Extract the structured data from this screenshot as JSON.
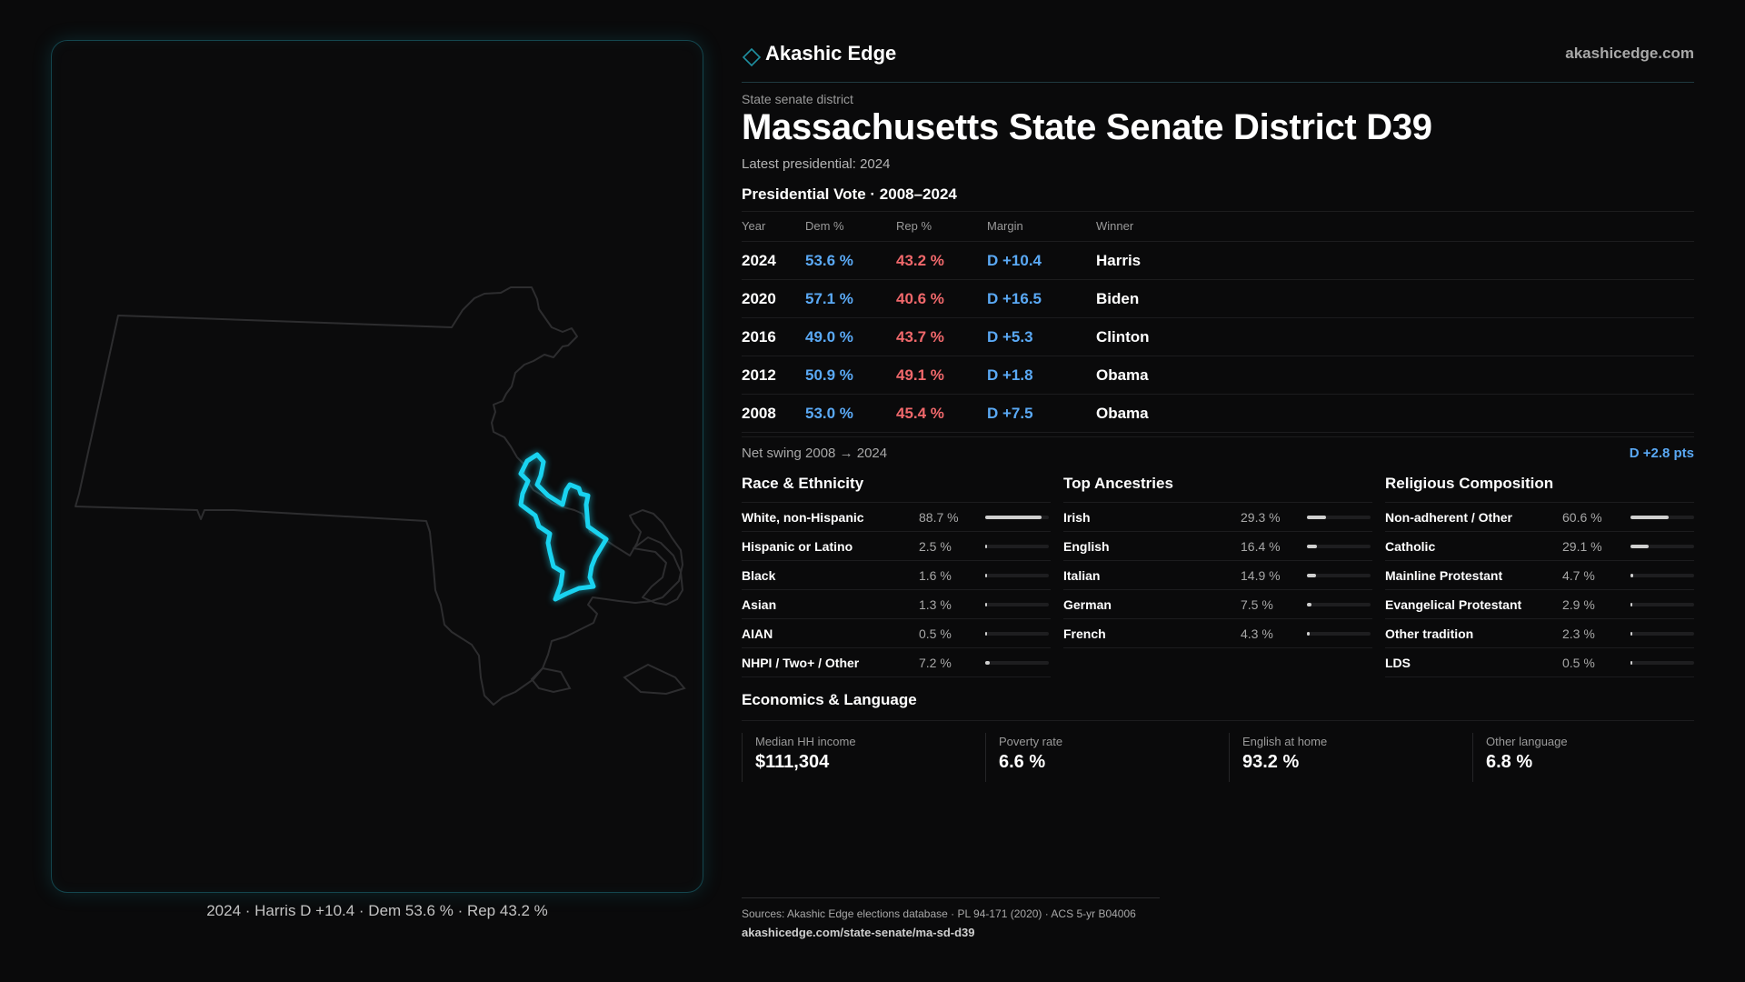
{
  "brand": {
    "name": "Akashic Edge",
    "url": "akashicedge.com"
  },
  "header": {
    "kicker": "State senate district",
    "title": "Massachusetts State Senate District D39",
    "latest": "Latest presidential: 2024"
  },
  "presidential": {
    "title": "Presidential Vote · 2008–2024",
    "columns": [
      "Year",
      "Dem %",
      "Rep %",
      "Margin",
      "Winner"
    ],
    "rows": [
      {
        "year": "2024",
        "dem": "53.6 %",
        "rep": "43.2 %",
        "margin": "D +10.4",
        "winner": "Harris"
      },
      {
        "year": "2020",
        "dem": "57.1 %",
        "rep": "40.6 %",
        "margin": "D +16.5",
        "winner": "Biden"
      },
      {
        "year": "2016",
        "dem": "49.0 %",
        "rep": "43.7 %",
        "margin": "D +5.3",
        "winner": "Clinton"
      },
      {
        "year": "2012",
        "dem": "50.9 %",
        "rep": "49.1 %",
        "margin": "D +1.8",
        "winner": "Obama"
      },
      {
        "year": "2008",
        "dem": "53.0 %",
        "rep": "45.4 %",
        "margin": "D +7.5",
        "winner": "Obama"
      }
    ],
    "swing_label": "Net swing 2008 → 2024",
    "swing_value": "D +2.8 pts"
  },
  "race": {
    "title": "Race & Ethnicity",
    "rows": [
      {
        "label": "White, non-Hispanic",
        "value": "88.7 %",
        "fraction": 0.887
      },
      {
        "label": "Hispanic or Latino",
        "value": "2.5 %",
        "fraction": 0.025
      },
      {
        "label": "Black",
        "value": "1.6 %",
        "fraction": 0.016
      },
      {
        "label": "Asian",
        "value": "1.3 %",
        "fraction": 0.013
      },
      {
        "label": "AIAN",
        "value": "0.5 %",
        "fraction": 0.005
      },
      {
        "label": "NHPI / Two+ / Other",
        "value": "7.2 %",
        "fraction": 0.072
      }
    ]
  },
  "ancestry": {
    "title": "Top Ancestries",
    "rows": [
      {
        "label": "Irish",
        "value": "29.3 %",
        "fraction": 0.293
      },
      {
        "label": "English",
        "value": "16.4 %",
        "fraction": 0.164
      },
      {
        "label": "Italian",
        "value": "14.9 %",
        "fraction": 0.149
      },
      {
        "label": "German",
        "value": "7.5 %",
        "fraction": 0.075
      },
      {
        "label": "French",
        "value": "4.3 %",
        "fraction": 0.043
      }
    ]
  },
  "religion": {
    "title": "Religious Composition",
    "rows": [
      {
        "label": "Non-adherent / Other",
        "value": "60.6 %",
        "fraction": 0.606
      },
      {
        "label": "Catholic",
        "value": "29.1 %",
        "fraction": 0.291
      },
      {
        "label": "Mainline Protestant",
        "value": "4.7 %",
        "fraction": 0.047
      },
      {
        "label": "Evangelical Protestant",
        "value": "2.9 %",
        "fraction": 0.029
      },
      {
        "label": "Other tradition",
        "value": "2.3 %",
        "fraction": 0.023
      },
      {
        "label": "LDS",
        "value": "0.5 %",
        "fraction": 0.005
      }
    ]
  },
  "economics": {
    "title": "Economics & Language",
    "stats": [
      {
        "label": "Median HH income",
        "value": "$111,304"
      },
      {
        "label": "Poverty rate",
        "value": "6.6 %"
      },
      {
        "label": "English at home",
        "value": "93.2 %"
      },
      {
        "label": "Other language",
        "value": "6.8 %"
      }
    ]
  },
  "map": {
    "caption": "2024 · Harris D +10.4 · Dem 53.6 % · Rep 43.2 %",
    "state_outline_color": "#2d2d2f",
    "district_color": "#19d3f0"
  },
  "footer": {
    "sources": "Sources: Akashic Edge elections database · PL 94-171 (2020) · ACS 5-yr B04006",
    "url": "akashicedge.com/state-senate/ma-sd-d39"
  },
  "colors": {
    "dem": "#5aa9f5",
    "rep": "#f0686b",
    "accent": "#19d3f0"
  }
}
